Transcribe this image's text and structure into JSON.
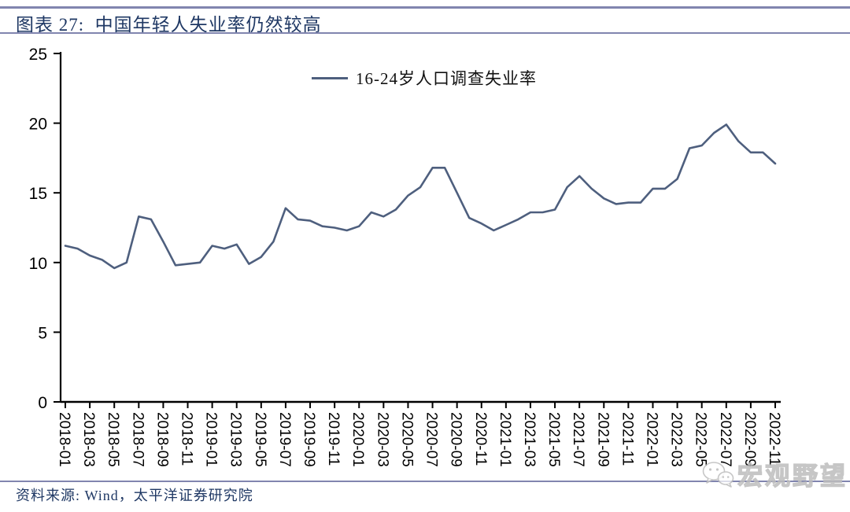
{
  "header": {
    "title": "图表 27:  中国年轻人失业率仍然较高"
  },
  "chart_data": {
    "type": "line",
    "title": "中国年轻人失业率仍然较高",
    "figure_label": "图表 27",
    "xlabel": "",
    "ylabel": "",
    "ylim": [
      0,
      25
    ],
    "y_ticks": [
      0,
      5,
      10,
      15,
      20,
      25
    ],
    "grid": false,
    "legend_position": "top-center",
    "x": [
      "2018-01",
      "2018-02",
      "2018-03",
      "2018-04",
      "2018-05",
      "2018-06",
      "2018-07",
      "2018-08",
      "2018-09",
      "2018-10",
      "2018-11",
      "2018-12",
      "2019-01",
      "2019-02",
      "2019-03",
      "2019-04",
      "2019-05",
      "2019-06",
      "2019-07",
      "2019-08",
      "2019-09",
      "2019-10",
      "2019-11",
      "2019-12",
      "2020-01",
      "2020-02",
      "2020-03",
      "2020-04",
      "2020-05",
      "2020-06",
      "2020-07",
      "2020-08",
      "2020-09",
      "2020-10",
      "2020-11",
      "2020-12",
      "2021-01",
      "2021-02",
      "2021-03",
      "2021-04",
      "2021-05",
      "2021-06",
      "2021-07",
      "2021-08",
      "2021-09",
      "2021-10",
      "2021-11",
      "2021-12",
      "2022-01",
      "2022-02",
      "2022-03",
      "2022-04",
      "2022-05",
      "2022-06",
      "2022-07",
      "2022-08",
      "2022-09",
      "2022-10",
      "2022-11"
    ],
    "x_tick_labels": [
      "2018-01",
      "2018-03",
      "2018-05",
      "2018-07",
      "2018-09",
      "2018-11",
      "2019-01",
      "2019-03",
      "2019-05",
      "2019-07",
      "2019-09",
      "2019-11",
      "2020-01",
      "2020-03",
      "2020-05",
      "2020-07",
      "2020-09",
      "2020-11",
      "2021-01",
      "2021-03",
      "2021-05",
      "2021-07",
      "2021-09",
      "2021-11",
      "2022-01",
      "2022-03",
      "2022-05",
      "2022-07",
      "2022-09",
      "2022-11"
    ],
    "series": [
      {
        "name": "16-24岁人口调查失业率",
        "color": "#4E5F7E",
        "values": [
          11.2,
          11.0,
          10.5,
          10.2,
          9.6,
          10.0,
          13.3,
          13.1,
          11.5,
          9.8,
          9.9,
          10.0,
          11.2,
          11.0,
          11.3,
          9.9,
          10.4,
          11.5,
          13.9,
          13.1,
          13.0,
          12.6,
          12.5,
          12.3,
          12.6,
          13.6,
          13.3,
          13.8,
          14.8,
          15.4,
          16.8,
          16.8,
          15.0,
          13.2,
          12.8,
          12.3,
          12.7,
          13.1,
          13.6,
          13.6,
          13.8,
          15.4,
          16.2,
          15.3,
          14.6,
          14.2,
          14.3,
          14.3,
          15.3,
          15.3,
          16.0,
          18.2,
          18.4,
          19.3,
          19.9,
          18.7,
          17.9,
          17.9,
          17.1
        ]
      }
    ]
  },
  "footer": {
    "source": "资料来源: Wind，太平洋证券研究院"
  },
  "watermark": {
    "text": "宏观野望"
  },
  "colors": {
    "accent_navy": "#1F3864",
    "divider": "#8185AF",
    "series_line": "#4E5F7E",
    "axis": "#000000",
    "watermark_gray": "#BDBDBD"
  }
}
